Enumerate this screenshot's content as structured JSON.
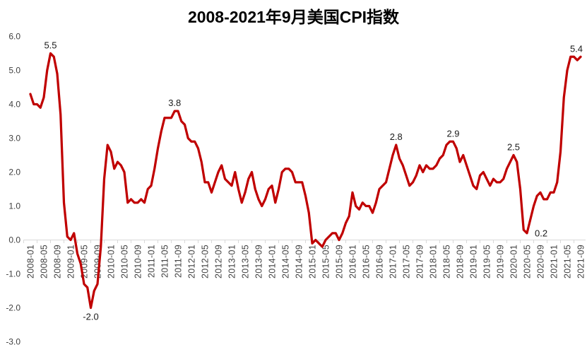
{
  "chart_data": {
    "type": "line",
    "title": "2008-2021年9月美国CPI指数",
    "x_start_month": "2008-01",
    "x_end_month": "2021-09",
    "x_label_every_n_months": 4,
    "x_tick_labels": [
      "2008-01",
      "2008-05",
      "2008-09",
      "2009-01",
      "2009-05",
      "2009-09",
      "2010-01",
      "2010-05",
      "2010-09",
      "2011-01",
      "2011-05",
      "2011-09",
      "2012-01",
      "2012-05",
      "2012-09",
      "2013-01",
      "2013-05",
      "2013-09",
      "2014-01",
      "2014-05",
      "2014-09",
      "2015-01",
      "2015-05",
      "2015-09",
      "2016-01",
      "2016-05",
      "2016-09",
      "2017-01",
      "2017-05",
      "2017-09",
      "2018-01",
      "2018-05",
      "2018-09",
      "2019-01",
      "2019-05",
      "2019-09",
      "2020-01",
      "2020-05",
      "2020-09",
      "2021-01",
      "2021-05",
      "2021-09"
    ],
    "y_tick_values": [
      6.0,
      5.0,
      4.0,
      3.0,
      2.0,
      1.0,
      0.0,
      -1.0,
      -2.0,
      -3.0
    ],
    "ylim": [
      -3.0,
      6.0
    ],
    "grid": false,
    "legend": "none",
    "values": [
      4.3,
      4.0,
      4.0,
      3.9,
      4.2,
      5.0,
      5.5,
      5.4,
      4.9,
      3.7,
      1.1,
      0.1,
      0.0,
      0.2,
      -0.4,
      -0.7,
      -1.3,
      -1.4,
      -2.0,
      -1.5,
      -1.3,
      -0.2,
      1.8,
      2.8,
      2.6,
      2.1,
      2.3,
      2.2,
      2.0,
      1.1,
      1.2,
      1.1,
      1.1,
      1.2,
      1.1,
      1.5,
      1.6,
      2.1,
      2.7,
      3.2,
      3.6,
      3.6,
      3.6,
      3.8,
      3.8,
      3.5,
      3.4,
      3.0,
      2.9,
      2.9,
      2.7,
      2.3,
      1.7,
      1.7,
      1.4,
      1.7,
      2.0,
      2.2,
      1.8,
      1.7,
      1.6,
      2.0,
      1.5,
      1.1,
      1.4,
      1.8,
      2.0,
      1.5,
      1.2,
      1.0,
      1.2,
      1.5,
      1.6,
      1.1,
      1.5,
      2.0,
      2.1,
      2.1,
      2.0,
      1.7,
      1.7,
      1.7,
      1.3,
      0.8,
      -0.1,
      0.0,
      -0.1,
      -0.2,
      0.0,
      0.1,
      0.2,
      0.2,
      0.0,
      0.2,
      0.5,
      0.7,
      1.4,
      1.0,
      0.9,
      1.1,
      1.0,
      1.0,
      0.8,
      1.1,
      1.5,
      1.6,
      1.7,
      2.1,
      2.5,
      2.8,
      2.4,
      2.2,
      1.9,
      1.6,
      1.7,
      1.9,
      2.2,
      2.0,
      2.2,
      2.1,
      2.1,
      2.2,
      2.4,
      2.5,
      2.8,
      2.9,
      2.9,
      2.7,
      2.3,
      2.5,
      2.2,
      1.9,
      1.6,
      1.5,
      1.9,
      2.0,
      1.8,
      1.6,
      1.8,
      1.7,
      1.7,
      1.8,
      2.1,
      2.3,
      2.5,
      2.3,
      1.5,
      0.3,
      0.2,
      0.6,
      1.0,
      1.3,
      1.4,
      1.2,
      1.2,
      1.4,
      1.4,
      1.7,
      2.6,
      4.2,
      5.0,
      5.4,
      5.4,
      5.3,
      5.4
    ],
    "point_labels": [
      {
        "month_index": 6,
        "text": "5.5",
        "placement": "above"
      },
      {
        "month_index": 18,
        "text": "-2.0",
        "placement": "below"
      },
      {
        "month_index": 43,
        "text": "3.8",
        "placement": "above"
      },
      {
        "month_index": 109,
        "text": "2.8",
        "placement": "above"
      },
      {
        "month_index": 126,
        "text": "2.9",
        "placement": "above"
      },
      {
        "month_index": 144,
        "text": "2.5",
        "placement": "above"
      },
      {
        "month_index": 148,
        "text": "0.2",
        "placement": "right"
      },
      {
        "month_index": 164,
        "text": "5.4",
        "placement": "above"
      }
    ],
    "line_color": "#C00000",
    "axis_color": "#D9D9D9",
    "tick_text_color": "#404040",
    "data_label_color": "#1a1a1a",
    "background": "#FFFFFF"
  }
}
